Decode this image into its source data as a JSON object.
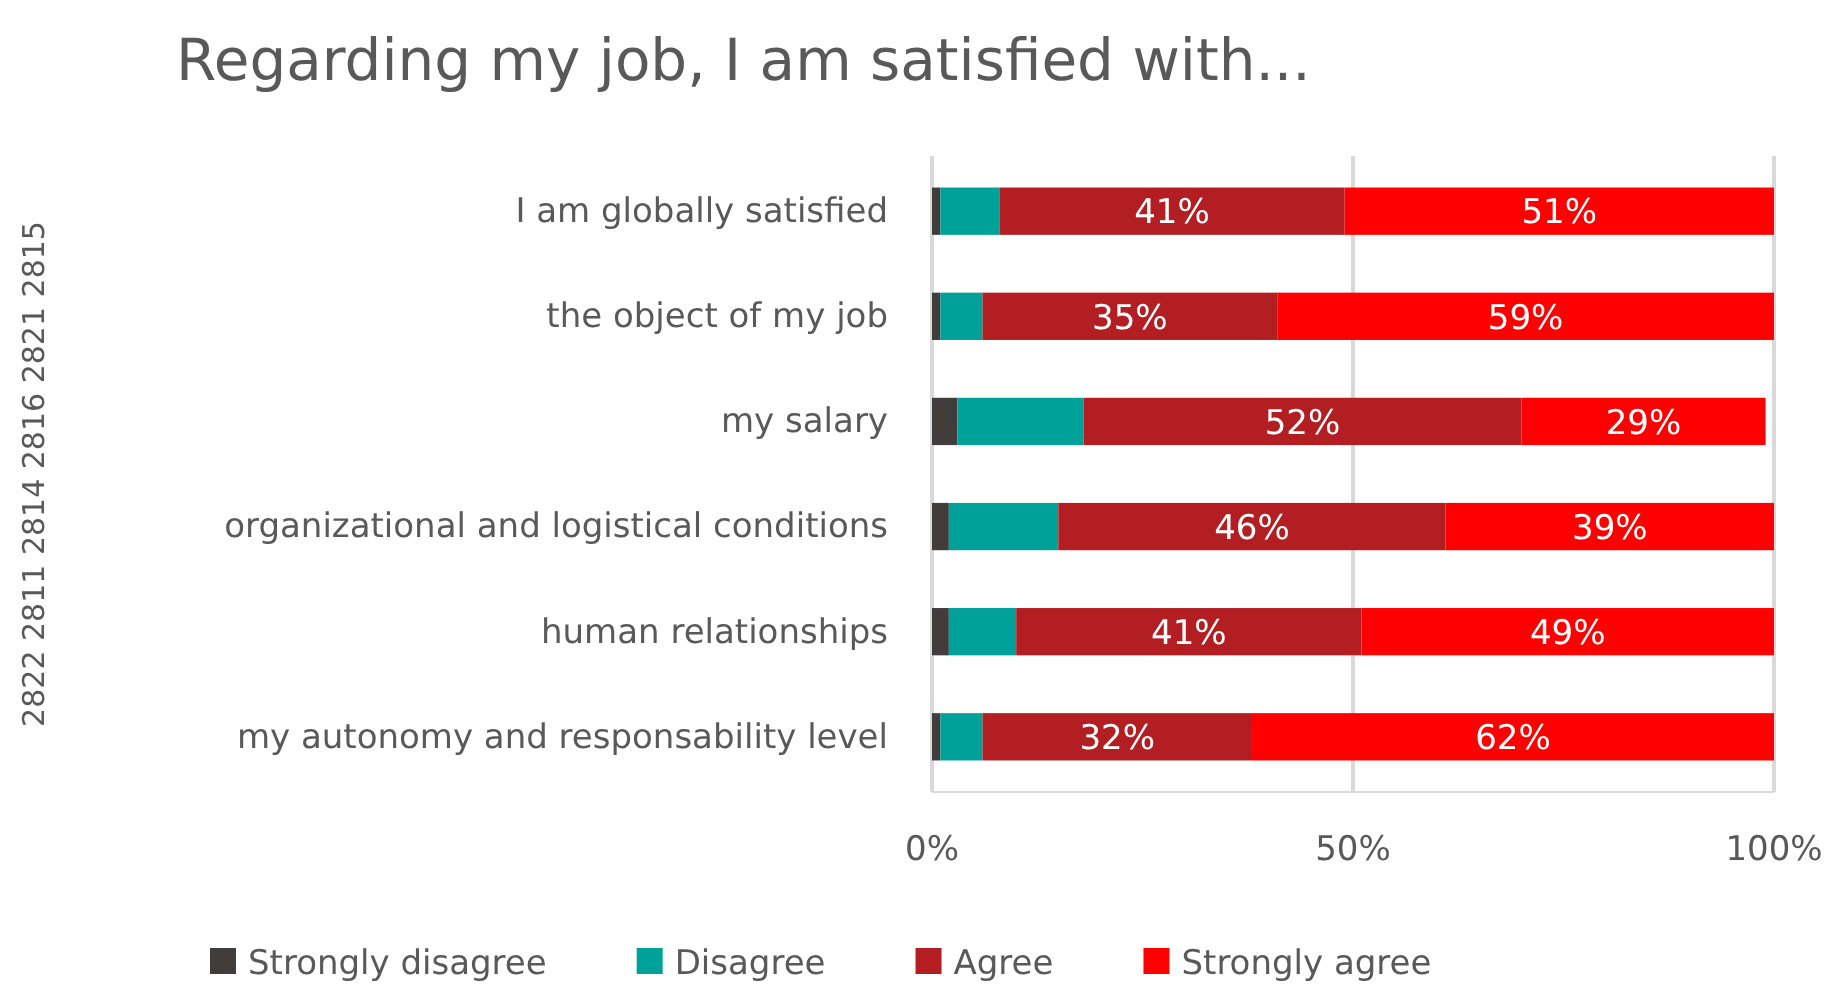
{
  "chart_data": {
    "type": "bar",
    "orientation": "horizontal",
    "stacked": true,
    "title": "Regarding my job, I am satisfied with...",
    "annotations": [
      "2822 2811 2814 2816 2821 2815"
    ],
    "categories": [
      "I am globally satisfied",
      "the object of my job",
      "my salary",
      "organizational and logistical conditions",
      "human relationships",
      "my autonomy and responsability level"
    ],
    "series": [
      {
        "name": "Strongly disagree",
        "color": "#403d3b",
        "values": [
          1,
          1,
          3,
          2,
          2,
          1
        ]
      },
      {
        "name": "Disagree",
        "color": "#00a199",
        "values": [
          7,
          5,
          15,
          13,
          8,
          5
        ]
      },
      {
        "name": "Agree",
        "color": "#b21e22",
        "values": [
          41,
          35,
          52,
          46,
          41,
          32
        ],
        "value_labels": [
          "41%",
          "35%",
          "52%",
          "46%",
          "41%",
          "32%"
        ]
      },
      {
        "name": "Strongly agree",
        "color": "#ff0000",
        "values": [
          51,
          59,
          29,
          39,
          49,
          62
        ],
        "value_labels": [
          "51%",
          "59%",
          "29%",
          "39%",
          "49%",
          "62%"
        ]
      }
    ],
    "xlim": [
      0,
      100
    ],
    "xticks": [
      {
        "value": 0,
        "label": "0%"
      },
      {
        "value": 50,
        "label": "50%"
      },
      {
        "value": 100,
        "label": "100%"
      }
    ],
    "grid": "x",
    "legend": "bottom"
  }
}
